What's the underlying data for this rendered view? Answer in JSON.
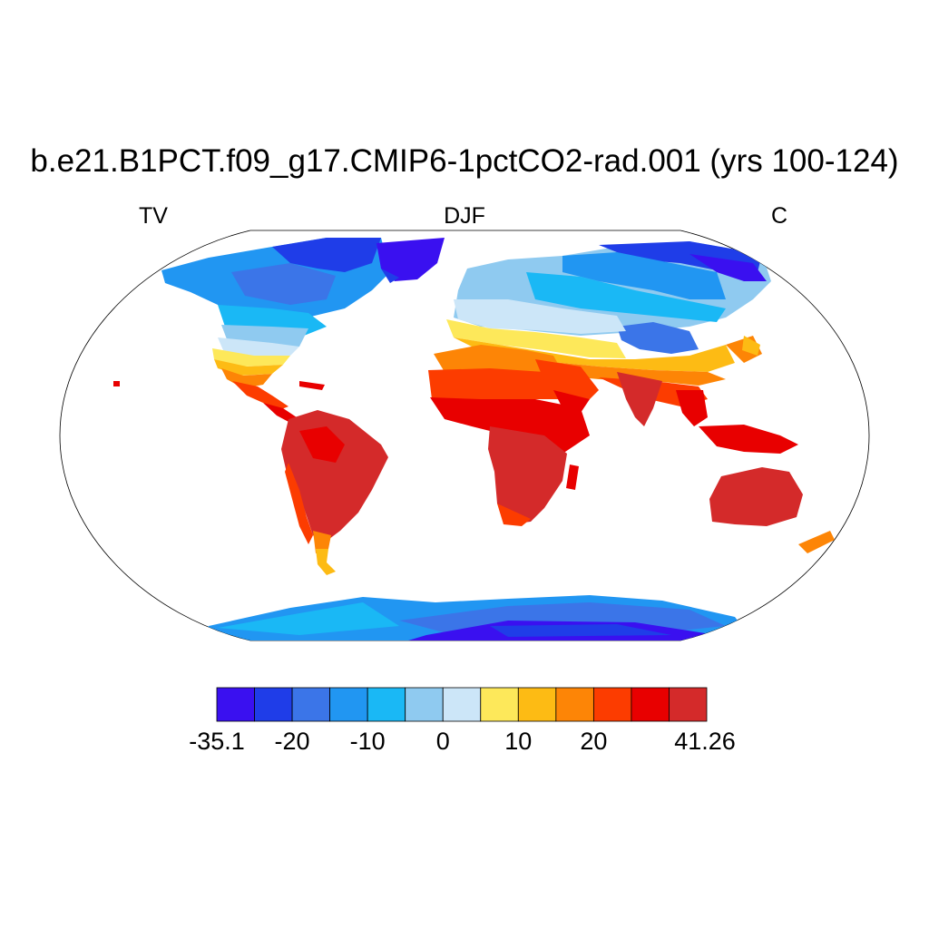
{
  "title": "b.e21.B1PCT.f09_g17.CMIP6-1pctCO2-rad.001 (yrs 100-124)",
  "subtitle_left": "TV",
  "subtitle_center": "DJF",
  "subtitle_right": "C",
  "colorbar": {
    "colors": [
      "#3a10f0",
      "#1f3de8",
      "#3b75e8",
      "#2196f2",
      "#1ab8f5",
      "#8fcaf0",
      "#cce6f8",
      "#fde85a",
      "#fdbb14",
      "#fd8506",
      "#fc3c00",
      "#e80000",
      "#d42a2a"
    ],
    "tick_labels": [
      "-35.1",
      "-20",
      "-10",
      "0",
      "10",
      "20",
      "41.26"
    ]
  },
  "map": {
    "projection": "Robinson",
    "variable": "TV",
    "season": "DJF",
    "units": "C"
  }
}
